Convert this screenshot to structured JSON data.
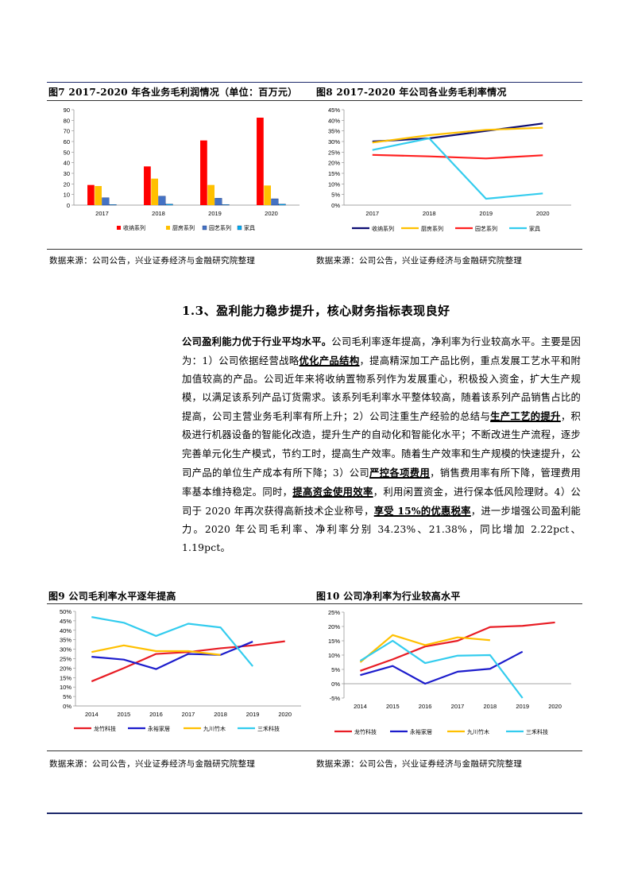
{
  "figures": {
    "fig7": {
      "title": "图7 2017-2020 年各业务毛利润情况（单位：百万元）",
      "source": "数据来源：公司公告，兴业证券经济与金融研究院整理"
    },
    "fig8": {
      "title": "图8 2017-2020 年公司各业务毛利率情况",
      "source": "数据来源：公司公告，兴业证券经济与金融研究院整理"
    },
    "fig9": {
      "title": "图9 公司毛利率水平逐年提高",
      "source": "数据来源：公司公告，兴业证券经济与金融研究院整理"
    },
    "fig10": {
      "title": "图10 公司净利率为行业较高水平",
      "source": "数据来源：公司公告，兴业证券经济与金融研究院整理"
    }
  },
  "section": {
    "heading": "1.3、盈利能力稳步提升，核心财务指标表现良好"
  },
  "body": {
    "p1": "公司盈利能力优于行业平均水平。",
    "p2": "公司毛利率逐年提高，净利率为行业较高水平。主要是因为：1）公司依据经营战略",
    "p3": "优化产品结构",
    "p4": "，提高精深加工产品比例，重点发展工艺水平和附加值较高的产品。公司近年来将收纳置物系列作为发展重心，积极投入资金，扩大生产规模，以满足该系列产品订货需求。该系列毛利率水平整体较高，随着该系列产品销售占比的提高，公司主营业务毛利率有所上升；2）公司注重生产经验的总结与",
    "p5": "生产工艺的提升",
    "p6": "，积极进行机器设备的智能化改造，提升生产的自动化和智能化水平；不断改进生产流程，逐步完善单元化生产模式，节约工时，提高生产效率。随着生产效率和生产规模的快速提升，公司产品的单位生产成本有所下降；3）公司",
    "p7": "严控各项费用",
    "p8": "，销售费用率有所下降，管理费用率基本维持稳定。同时，",
    "p9": "提高资金使用效率",
    "p10": "，利用闲置资金，进行保本低风险理财。4）公司于 2020 年再次获得高新技术企业称号，",
    "p11": "享受 15%的优惠税率",
    "p12": "，进一步增强公司盈利能力。2020 年公司毛利率、净利率分别 34.23%、21.38%，同比增加 2.22pct、1.19pct。"
  },
  "chart_data": [
    {
      "id": "fig7",
      "type": "bar",
      "categories": [
        "2017",
        "2018",
        "2019",
        "2020"
      ],
      "ylim": [
        0,
        90
      ],
      "yticks": [
        "0",
        "10",
        "20",
        "30",
        "40",
        "50",
        "60",
        "70",
        "80",
        "90"
      ],
      "legend_position": "bottom",
      "series": [
        {
          "name": "收纳系列",
          "color": "#ff0000",
          "values": [
            19,
            36.5,
            61,
            82.5
          ]
        },
        {
          "name": "厨房系列",
          "color": "#ffc000",
          "values": [
            18,
            25,
            19,
            18.5
          ]
        },
        {
          "name": "园艺系列",
          "color": "#4472c4",
          "values": [
            7,
            8.5,
            6.5,
            6
          ]
        },
        {
          "name": "家具",
          "color": "#00b0f0",
          "values": [
            0.5,
            1,
            0.5,
            1
          ]
        }
      ]
    },
    {
      "id": "fig8",
      "type": "line",
      "categories": [
        "2017",
        "2018",
        "2019",
        "2020"
      ],
      "ylim": [
        0,
        45
      ],
      "yticks": [
        "0%",
        "5%",
        "10%",
        "15%",
        "20%",
        "25%",
        "30%",
        "35%",
        "40%",
        "45%"
      ],
      "legend_position": "bottom",
      "series": [
        {
          "name": "收纳系列",
          "color": "#0d0d73",
          "values": [
            30,
            31.5,
            35,
            38.5
          ]
        },
        {
          "name": "厨房系列",
          "color": "#ffc000",
          "values": [
            29.5,
            33,
            35.5,
            36.5
          ]
        },
        {
          "name": "园艺系列",
          "color": "#ff2020",
          "values": [
            23.7,
            23,
            22,
            23.5
          ]
        },
        {
          "name": "家具",
          "color": "#33ccee",
          "values": [
            26,
            31.5,
            3,
            5.5
          ]
        }
      ]
    },
    {
      "id": "fig9",
      "type": "line",
      "categories": [
        "2014",
        "2015",
        "2016",
        "2017",
        "2018",
        "2019",
        "2020"
      ],
      "ylim": [
        0,
        50
      ],
      "yticks": [
        "0%",
        "5%",
        "10%",
        "15%",
        "20%",
        "25%",
        "30%",
        "35%",
        "40%",
        "45%",
        "50%"
      ],
      "legend_position": "bottom",
      "series": [
        {
          "name": "龙竹科技",
          "color": "#e81c24",
          "values": [
            13,
            20,
            27.5,
            28.5,
            30.5,
            32,
            34.2
          ]
        },
        {
          "name": "永裕家居",
          "color": "#1c1ccc",
          "values": [
            26,
            24.5,
            19.5,
            27.5,
            27,
            34,
            null
          ]
        },
        {
          "name": "九川竹木",
          "color": "#ffc000",
          "values": [
            28.5,
            32,
            29,
            29,
            27,
            null,
            null
          ]
        },
        {
          "name": "三禾科技",
          "color": "#33ccee",
          "values": [
            47,
            44,
            37,
            43.5,
            41.5,
            21,
            null
          ]
        }
      ]
    },
    {
      "id": "fig10",
      "type": "line",
      "categories": [
        "2014",
        "2015",
        "2016",
        "2017",
        "2018",
        "2019",
        "2020"
      ],
      "ylim": [
        -5,
        25
      ],
      "yticks": [
        "-5%",
        "0%",
        "5%",
        "10%",
        "15%",
        "20%",
        "25%"
      ],
      "legend_position": "bottom",
      "series": [
        {
          "name": "龙竹科技",
          "color": "#e81c24",
          "values": [
            4.5,
            8.5,
            13,
            15,
            19.8,
            20.2,
            21.4
          ]
        },
        {
          "name": "永裕家居",
          "color": "#1c1ccc",
          "values": [
            3,
            6.2,
            0,
            4.2,
            5.2,
            11.2,
            null
          ]
        },
        {
          "name": "九川竹木",
          "color": "#ffc000",
          "values": [
            7.5,
            17,
            13.5,
            16.2,
            15.2,
            null,
            null
          ]
        },
        {
          "name": "三禾科技",
          "color": "#33ccee",
          "values": [
            8,
            15,
            7.2,
            9.8,
            10,
            -5,
            null
          ]
        }
      ]
    }
  ]
}
